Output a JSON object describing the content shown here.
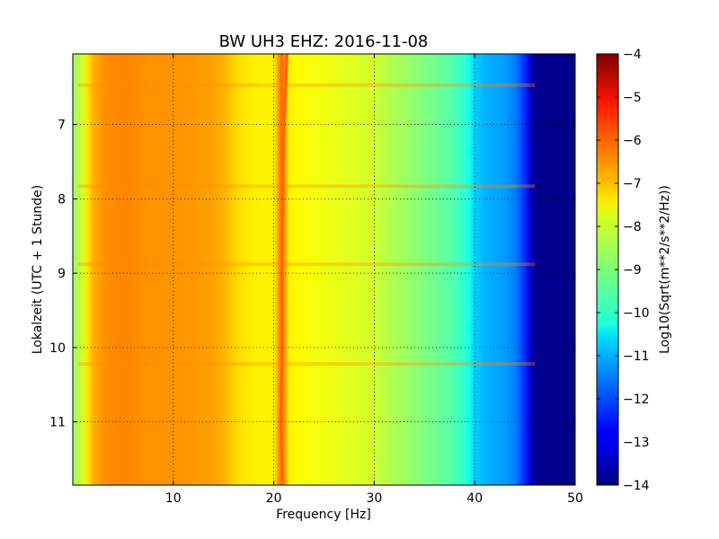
{
  "chart_data": {
    "type": "heatmap",
    "title": "BW UH3 EHZ: 2016-11-08",
    "xlabel": "Frequency [Hz]",
    "ylabel": "Lokalzeit (UTC + 1 Stunde)",
    "xlim": [
      0,
      50
    ],
    "ylim": [
      6.05,
      11.85
    ],
    "y_inverted": true,
    "grid": true,
    "x_ticks": [
      10,
      20,
      30,
      40,
      50
    ],
    "x_tick_labels": [
      "10",
      "20",
      "30",
      "40",
      "50"
    ],
    "y_ticks": [
      7,
      8,
      9,
      10,
      11
    ],
    "y_tick_labels": [
      "7",
      "8",
      "9",
      "10",
      "11"
    ],
    "colormap": "jet",
    "colorbar": {
      "label": "Log10(Sqrt(m**2/s**2/Hz))",
      "range": [
        -14,
        -4
      ],
      "ticks": [
        -4,
        -5,
        -6,
        -7,
        -8,
        -9,
        -10,
        -11,
        -12,
        -13,
        -14
      ],
      "tick_labels": [
        "−4",
        "−5",
        "−6",
        "−7",
        "−8",
        "−9",
        "−10",
        "−11",
        "−12",
        "−13",
        "−14"
      ]
    },
    "spectrum_profile": {
      "frequency_hz": [
        0,
        0.5,
        1,
        1.5,
        2,
        3,
        4,
        5,
        6,
        8,
        10,
        12,
        14,
        15,
        16,
        17,
        18,
        19,
        20,
        20.8,
        21.5,
        22,
        24,
        26,
        28,
        30,
        31,
        33,
        35,
        37,
        38,
        39,
        39.5,
        40,
        41,
        42,
        43,
        44,
        45,
        45.5,
        46,
        47,
        50
      ],
      "log10_amplitude": [
        -8.7,
        -8.5,
        -8.1,
        -7.5,
        -7.0,
        -6.7,
        -6.6,
        -6.55,
        -6.6,
        -6.7,
        -6.7,
        -6.75,
        -6.85,
        -7.0,
        -7.3,
        -7.5,
        -7.6,
        -7.65,
        -7.6,
        -6.2,
        -7.6,
        -7.7,
        -7.85,
        -7.95,
        -8.05,
        -8.2,
        -8.4,
        -8.7,
        -9.0,
        -9.3,
        -9.5,
        -9.8,
        -10.1,
        -10.7,
        -11.0,
        -11.1,
        -11.2,
        -11.5,
        -12.3,
        -13.2,
        -13.8,
        -13.9,
        -13.9
      ]
    },
    "spectral_line_hz": [
      {
        "time": 6.05,
        "freq": 21.3
      },
      {
        "time": 7.0,
        "freq": 21.0
      },
      {
        "time": 8.0,
        "freq": 20.9
      },
      {
        "time": 9.0,
        "freq": 20.8
      },
      {
        "time": 10.0,
        "freq": 20.85
      },
      {
        "time": 11.0,
        "freq": 20.7
      },
      {
        "time": 11.85,
        "freq": 20.9
      }
    ],
    "transient_bands_time": [
      6.47,
      7.83,
      8.88,
      10.22
    ]
  }
}
